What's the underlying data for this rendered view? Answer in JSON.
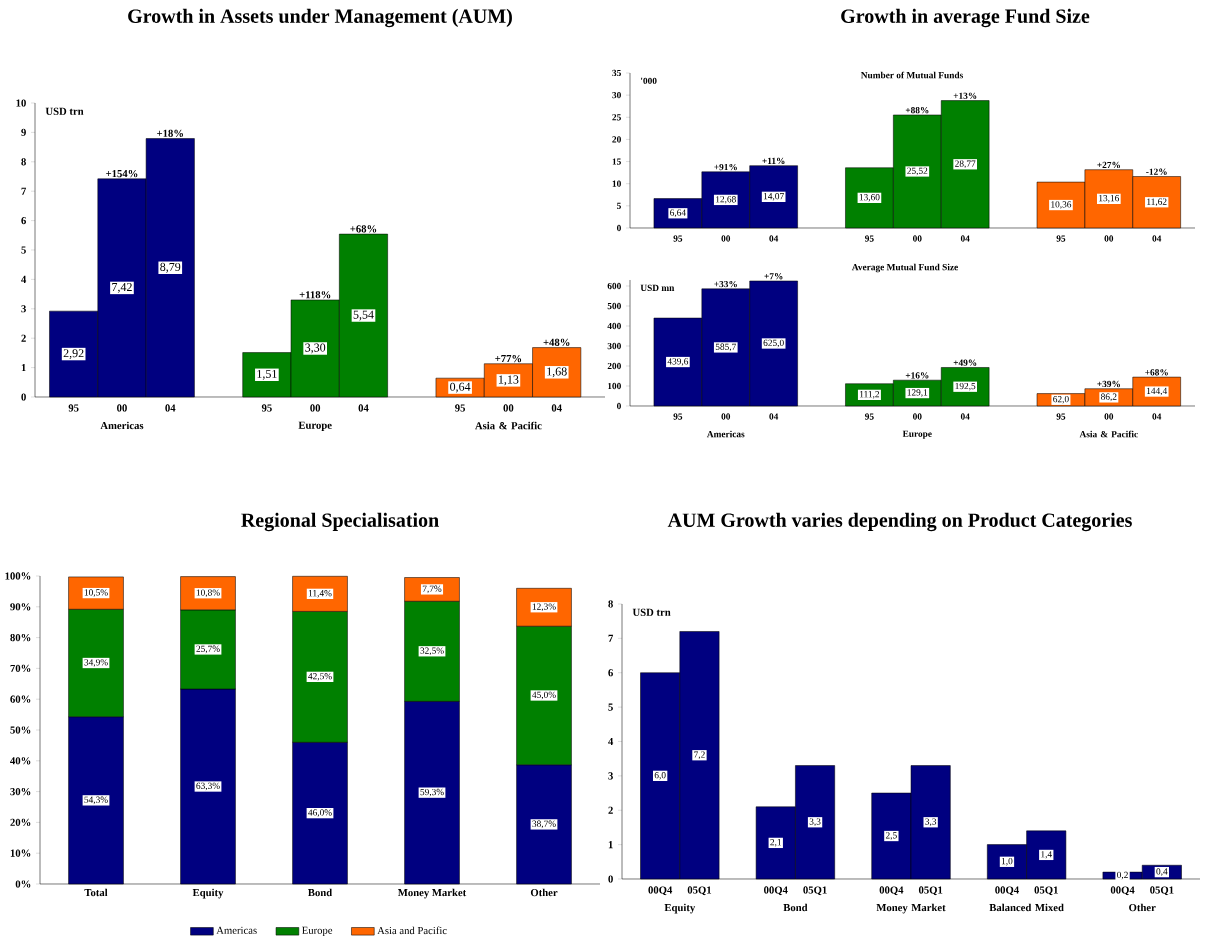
{
  "chart_data": [
    {
      "type": "bar",
      "title": "Growth in Assets under Management (AUM)",
      "ylabel": "USD trn",
      "categories": [
        "Americas",
        "Europe",
        "Asia & Pacific"
      ],
      "series": [
        {
          "name": "95",
          "colors": [
            "#000080",
            "#008000",
            "#ff6600"
          ],
          "values": [
            2.92,
            1.51,
            0.64
          ],
          "value_labels": [
            "2,92",
            "1,51",
            "0,64"
          ]
        },
        {
          "name": "00",
          "colors": [
            "#000080",
            "#008000",
            "#ff6600"
          ],
          "values": [
            7.42,
            3.3,
            1.13
          ],
          "value_labels": [
            "7,42",
            "3,30",
            "1,13"
          ]
        },
        {
          "name": "04",
          "colors": [
            "#000080",
            "#008000",
            "#ff6600"
          ],
          "values": [
            8.79,
            5.54,
            1.68
          ],
          "value_labels": [
            "8,79",
            "5,54",
            "1,68"
          ]
        }
      ],
      "ylim": [
        0,
        10
      ],
      "yticks": [
        0,
        1,
        2,
        3,
        4,
        5,
        6,
        7,
        8,
        9,
        10
      ],
      "annotations": [
        "+154%",
        "+18%",
        "+118%",
        "+68%",
        "+77%",
        "+48%"
      ]
    },
    {
      "type": "bar",
      "title": "Growth in average Fund Size",
      "subtitle": "Number of Mutual Funds",
      "ylabel": "'000",
      "categories": [
        null,
        null,
        null
      ],
      "series": [
        {
          "name": "95",
          "colors": [
            "#000080",
            "#008000",
            "#ff6600"
          ],
          "values": [
            6.64,
            13.6,
            10.36
          ],
          "value_labels": [
            "6,64",
            "13,60",
            "10,36"
          ]
        },
        {
          "name": "00",
          "colors": [
            "#000080",
            "#008000",
            "#ff6600"
          ],
          "values": [
            12.68,
            25.52,
            13.16
          ],
          "value_labels": [
            "12,68",
            "25,52",
            "13,16"
          ]
        },
        {
          "name": "04",
          "colors": [
            "#000080",
            "#008000",
            "#ff6600"
          ],
          "values": [
            14.07,
            28.77,
            11.62
          ],
          "value_labels": [
            "14,07",
            "28,77",
            "11,62"
          ]
        }
      ],
      "ylim": [
        0,
        35
      ],
      "yticks": [
        0,
        5,
        10,
        15,
        20,
        25,
        30,
        35
      ],
      "annotations": [
        "+91%",
        "+11%",
        "+88%",
        "+13%",
        "+27%",
        "-12%"
      ]
    },
    {
      "type": "bar",
      "subtitle": "Average Mutual Fund Size",
      "ylabel": "USD mn",
      "categories": [
        "Americas",
        "Europe",
        "Asia & Pacific"
      ],
      "series": [
        {
          "name": "95",
          "colors": [
            "#000080",
            "#008000",
            "#ff6600"
          ],
          "values": [
            439.6,
            111.2,
            62.0
          ],
          "value_labels": [
            "439,6",
            "111,2",
            "62,0"
          ]
        },
        {
          "name": "00",
          "colors": [
            "#000080",
            "#008000",
            "#ff6600"
          ],
          "values": [
            585.7,
            129.1,
            86.2
          ],
          "value_labels": [
            "585,7",
            "129,1",
            "86,2"
          ]
        },
        {
          "name": "04",
          "colors": [
            "#000080",
            "#008000",
            "#ff6600"
          ],
          "values": [
            625.0,
            192.5,
            144.4
          ],
          "value_labels": [
            "625,0",
            "192,5",
            "144,4"
          ]
        }
      ],
      "ylim": [
        0,
        630
      ],
      "yticks": [
        0,
        100,
        200,
        300,
        400,
        500,
        600
      ],
      "annotations": [
        "+33%",
        "+7%",
        "+16%",
        "+49%",
        "+39%",
        "+68%"
      ]
    },
    {
      "type": "bar",
      "title": "Regional Specialisation",
      "stacked": true,
      "legend": "bottom",
      "categories": [
        "Total",
        "Equity",
        "Bond",
        "Money Market",
        "Other"
      ],
      "series": [
        {
          "name": "Americas",
          "color": "#000080",
          "values": [
            54.3,
            63.3,
            46.0,
            59.3,
            38.7
          ],
          "value_labels": [
            "54,3%",
            "63,3%",
            "46,0%",
            "59,3%",
            "38,7%"
          ]
        },
        {
          "name": "Europe",
          "color": "#008000",
          "values": [
            34.9,
            25.7,
            42.5,
            32.5,
            45.0
          ],
          "value_labels": [
            "34,9%",
            "25,7%",
            "42,5%",
            "32,5%",
            "45,0%"
          ]
        },
        {
          "name": "Asia and Pacific",
          "color": "#ff6600",
          "values": [
            10.5,
            10.8,
            11.4,
            7.7,
            12.3
          ],
          "value_labels": [
            "10,5%",
            "10,8%",
            "11,4%",
            "7,7%",
            "12,3%"
          ]
        }
      ],
      "ylim": [
        0,
        100
      ],
      "yticks": [
        {
          "value": 0,
          "label": "0%"
        },
        {
          "value": 10,
          "label": "10%"
        },
        {
          "value": 20,
          "label": "20%"
        },
        {
          "value": 30,
          "label": "30%"
        },
        {
          "value": 40,
          "label": "40%"
        },
        {
          "value": 50,
          "label": "50%"
        },
        {
          "value": 60,
          "label": "60%"
        },
        {
          "value": 70,
          "label": "70%"
        },
        {
          "value": 80,
          "label": "80%"
        },
        {
          "value": 90,
          "label": "90%"
        },
        {
          "value": 100,
          "label": "100%"
        }
      ]
    },
    {
      "type": "bar",
      "title": "AUM Growth varies depending on Product Categories",
      "ylabel": "USD trn",
      "categories": [
        "Equity",
        "Bond",
        "Money Market",
        "Balanced Mixed",
        "Other"
      ],
      "series": [
        {
          "name": "00Q4",
          "color": "#000080",
          "values": [
            6.0,
            2.1,
            2.5,
            1.0,
            0.2
          ],
          "value_labels": [
            "6,0",
            "2,1",
            "2,5",
            "1,0",
            "0,2"
          ]
        },
        {
          "name": "05Q1",
          "color": "#000080",
          "values": [
            7.2,
            3.3,
            3.3,
            1.4,
            0.4
          ],
          "value_labels": [
            "7,2",
            "3,3",
            "3,3",
            "1,4",
            "0,4"
          ]
        }
      ],
      "ylim": [
        0,
        8
      ],
      "yticks": [
        0,
        1,
        2,
        3,
        4,
        5,
        6,
        7,
        8
      ]
    }
  ]
}
